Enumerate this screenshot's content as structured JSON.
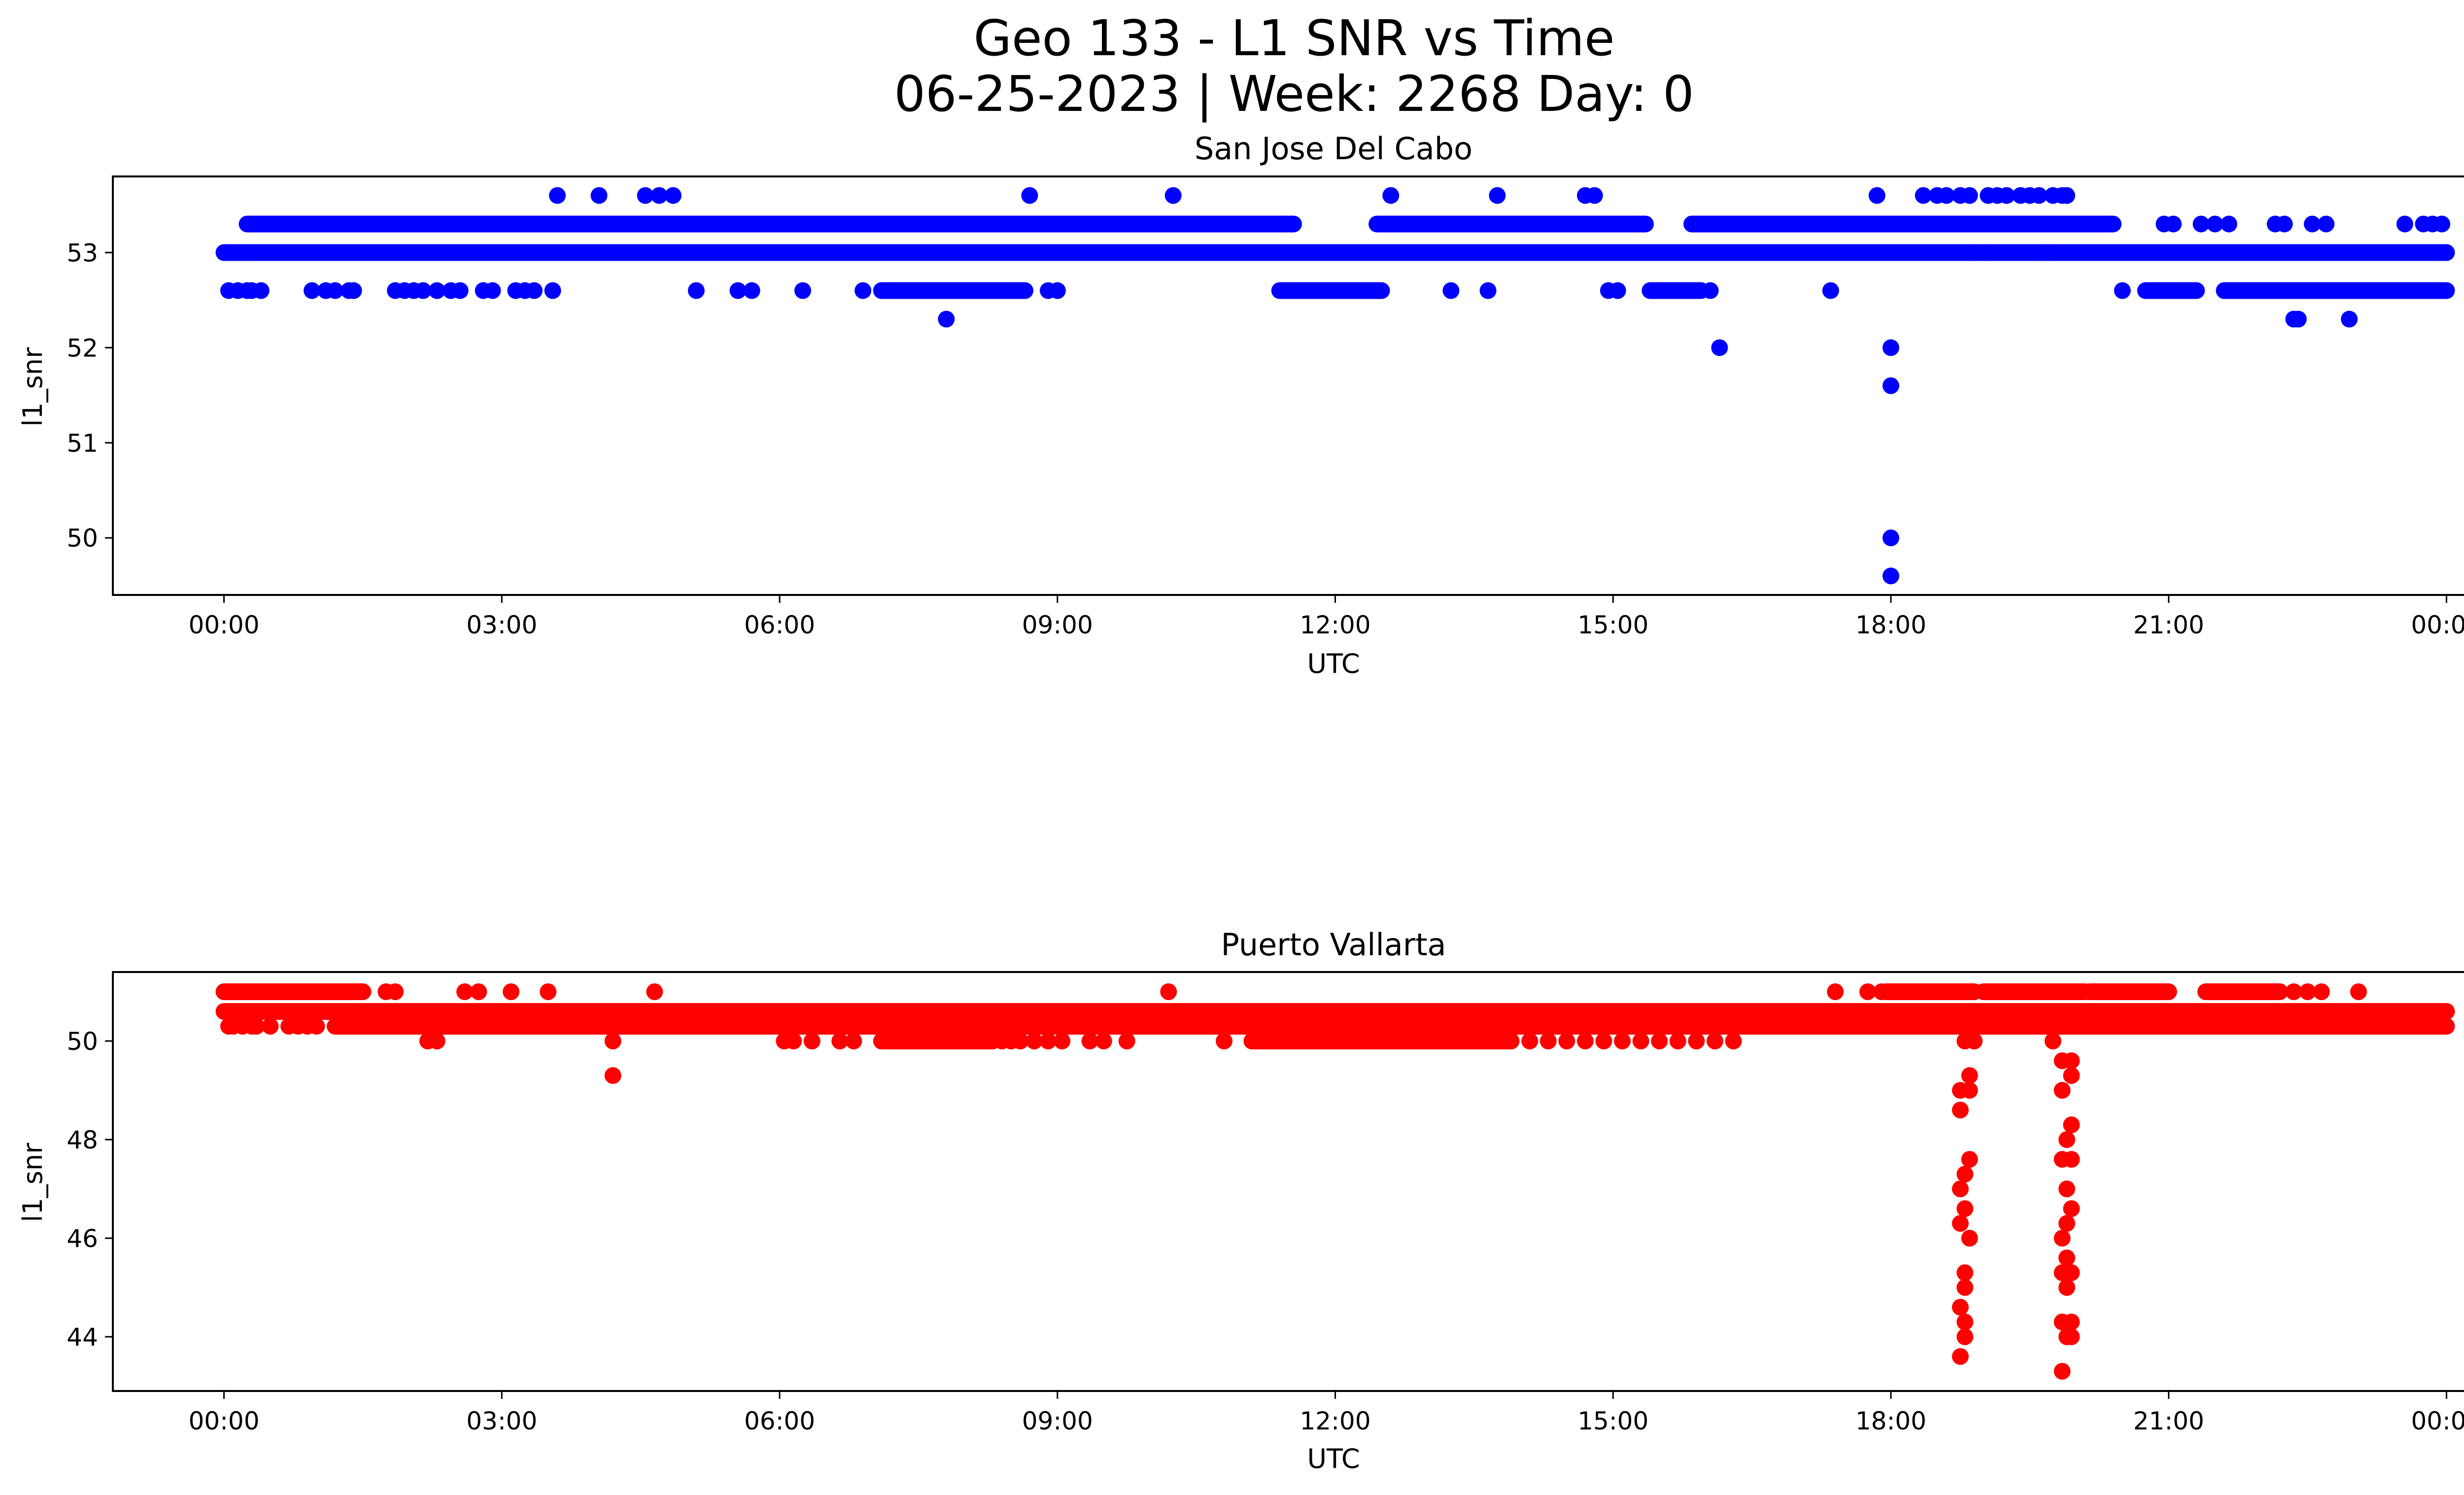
{
  "figure": {
    "title_line1": "Geo 133 - L1 SNR vs Time",
    "title_line2": "06-25-2023 | Week: 2268 Day: 0"
  },
  "chart_data": [
    {
      "type": "scatter",
      "title": "San Jose Del Cabo",
      "xlabel": "UTC",
      "ylabel": "l1_snr",
      "color": "#0000ff",
      "xlim_hours": [
        -1.2,
        25.2
      ],
      "ylim": [
        49.4,
        53.8
      ],
      "x_ticks": [
        "00:00",
        "03:00",
        "06:00",
        "09:00",
        "12:00",
        "15:00",
        "18:00",
        "21:00",
        "00:00"
      ],
      "y_ticks": [
        50,
        51,
        52,
        53
      ],
      "bands_hours": [
        {
          "y": 53.0,
          "from": 0.0,
          "to": 24.0
        },
        {
          "y": 53.3,
          "from": 0.25,
          "to": 11.55
        },
        {
          "y": 53.3,
          "from": 12.45,
          "to": 15.35
        },
        {
          "y": 53.3,
          "from": 15.85,
          "to": 20.4
        },
        {
          "y": 52.6,
          "from": 7.1,
          "to": 8.65
        },
        {
          "y": 52.6,
          "from": 11.4,
          "to": 12.5
        },
        {
          "y": 52.6,
          "from": 15.4,
          "to": 15.95
        },
        {
          "y": 52.6,
          "from": 20.75,
          "to": 21.3
        },
        {
          "y": 52.6,
          "from": 21.6,
          "to": 24.0
        }
      ],
      "points_hours": [
        [
          0.05,
          52.6
        ],
        [
          0.15,
          52.6
        ],
        [
          0.25,
          52.6
        ],
        [
          0.3,
          52.6
        ],
        [
          0.4,
          52.6
        ],
        [
          0.6,
          53.3
        ],
        [
          0.9,
          53.3
        ],
        [
          1.2,
          53.3
        ],
        [
          1.45,
          53.3
        ],
        [
          1.8,
          53.3
        ],
        [
          2.1,
          53.3
        ],
        [
          2.5,
          53.3
        ],
        [
          2.9,
          53.3
        ],
        [
          0.95,
          52.6
        ],
        [
          1.1,
          52.6
        ],
        [
          1.2,
          52.6
        ],
        [
          1.35,
          52.6
        ],
        [
          1.4,
          52.6
        ],
        [
          1.85,
          52.6
        ],
        [
          1.95,
          52.6
        ],
        [
          2.05,
          52.6
        ],
        [
          2.15,
          52.6
        ],
        [
          2.3,
          52.6
        ],
        [
          2.45,
          52.6
        ],
        [
          2.55,
          52.6
        ],
        [
          2.8,
          52.6
        ],
        [
          2.9,
          52.6
        ],
        [
          3.15,
          52.6
        ],
        [
          3.25,
          52.6
        ],
        [
          3.35,
          52.6
        ],
        [
          3.55,
          52.6
        ],
        [
          3.0,
          53.3
        ],
        [
          3.6,
          53.6
        ],
        [
          4.05,
          53.6
        ],
        [
          4.55,
          53.6
        ],
        [
          4.7,
          53.6
        ],
        [
          4.85,
          53.6
        ],
        [
          5.1,
          52.6
        ],
        [
          5.55,
          52.6
        ],
        [
          5.7,
          52.6
        ],
        [
          6.25,
          52.6
        ],
        [
          6.9,
          52.6
        ],
        [
          7.8,
          52.3
        ],
        [
          8.7,
          53.6
        ],
        [
          8.9,
          52.6
        ],
        [
          9.0,
          52.6
        ],
        [
          10.25,
          53.6
        ],
        [
          12.6,
          53.6
        ],
        [
          13.25,
          52.6
        ],
        [
          13.65,
          52.6
        ],
        [
          13.75,
          53.6
        ],
        [
          14.7,
          53.6
        ],
        [
          14.8,
          53.6
        ],
        [
          14.95,
          52.6
        ],
        [
          15.05,
          52.6
        ],
        [
          16.05,
          52.6
        ],
        [
          16.15,
          52.0
        ],
        [
          17.35,
          52.6
        ],
        [
          17.85,
          53.6
        ],
        [
          18.0,
          52.0
        ],
        [
          18.0,
          51.6
        ],
        [
          18.0,
          50.0
        ],
        [
          18.0,
          49.6
        ],
        [
          18.35,
          53.6
        ],
        [
          18.5,
          53.6
        ],
        [
          18.6,
          53.6
        ],
        [
          18.75,
          53.6
        ],
        [
          18.85,
          53.6
        ],
        [
          19.05,
          53.6
        ],
        [
          19.15,
          53.6
        ],
        [
          19.25,
          53.6
        ],
        [
          19.4,
          53.6
        ],
        [
          19.5,
          53.6
        ],
        [
          19.6,
          53.6
        ],
        [
          19.75,
          53.6
        ],
        [
          19.85,
          53.6
        ],
        [
          19.9,
          53.6
        ],
        [
          18.9,
          53.0
        ],
        [
          19.05,
          53.0
        ],
        [
          19.7,
          53.0
        ],
        [
          20.95,
          53.3
        ],
        [
          21.05,
          53.3
        ],
        [
          21.35,
          53.3
        ],
        [
          21.5,
          53.3
        ],
        [
          21.65,
          53.3
        ],
        [
          22.15,
          53.3
        ],
        [
          22.25,
          53.3
        ],
        [
          22.55,
          53.3
        ],
        [
          22.7,
          53.3
        ],
        [
          23.55,
          53.3
        ],
        [
          23.75,
          53.3
        ],
        [
          23.85,
          53.3
        ],
        [
          23.95,
          53.3
        ],
        [
          20.5,
          52.6
        ],
        [
          22.35,
          52.3
        ],
        [
          22.4,
          52.3
        ],
        [
          22.95,
          52.3
        ]
      ]
    },
    {
      "type": "scatter",
      "title": "Puerto Vallarta",
      "xlabel": "UTC",
      "ylabel": "l1_snr",
      "color": "#ff0000",
      "xlim_hours": [
        -1.2,
        25.2
      ],
      "ylim": [
        42.9,
        51.4
      ],
      "x_ticks": [
        "00:00",
        "03:00",
        "06:00",
        "09:00",
        "12:00",
        "15:00",
        "18:00",
        "21:00",
        "00:00"
      ],
      "y_ticks": [
        44,
        46,
        48,
        50
      ],
      "bands_hours": [
        {
          "y": 50.6,
          "from": 0.0,
          "to": 24.0
        },
        {
          "y": 50.3,
          "from": 1.2,
          "to": 24.0
        },
        {
          "y": 51.0,
          "from": 0.0,
          "to": 1.5
        },
        {
          "y": 50.0,
          "from": 11.1,
          "to": 13.9
        },
        {
          "y": 50.0,
          "from": 7.1,
          "to": 8.3
        },
        {
          "y": 51.0,
          "from": 17.95,
          "to": 18.9
        },
        {
          "y": 51.0,
          "from": 19.0,
          "to": 20.1
        },
        {
          "y": 51.0,
          "from": 20.15,
          "to": 21.0
        },
        {
          "y": 51.0,
          "from": 21.4,
          "to": 22.2
        }
      ],
      "points_hours": [
        [
          0.05,
          50.3
        ],
        [
          0.1,
          50.3
        ],
        [
          0.2,
          50.3
        ],
        [
          0.3,
          50.3
        ],
        [
          0.35,
          50.3
        ],
        [
          0.5,
          50.3
        ],
        [
          0.7,
          50.3
        ],
        [
          0.8,
          50.3
        ],
        [
          0.9,
          50.3
        ],
        [
          1.0,
          50.3
        ],
        [
          1.25,
          50.3
        ],
        [
          1.75,
          51.0
        ],
        [
          1.85,
          51.0
        ],
        [
          2.2,
          50.0
        ],
        [
          2.3,
          50.0
        ],
        [
          2.6,
          51.0
        ],
        [
          2.75,
          51.0
        ],
        [
          3.1,
          51.0
        ],
        [
          3.5,
          51.0
        ],
        [
          4.2,
          50.0
        ],
        [
          4.2,
          49.3
        ],
        [
          4.65,
          51.0
        ],
        [
          6.05,
          50.0
        ],
        [
          6.15,
          50.0
        ],
        [
          6.35,
          50.0
        ],
        [
          6.65,
          50.0
        ],
        [
          6.8,
          50.0
        ],
        [
          8.4,
          50.0
        ],
        [
          8.5,
          50.0
        ],
        [
          8.6,
          50.0
        ],
        [
          8.75,
          50.0
        ],
        [
          8.9,
          50.0
        ],
        [
          9.05,
          50.0
        ],
        [
          9.35,
          50.0
        ],
        [
          9.5,
          50.0
        ],
        [
          9.75,
          50.0
        ],
        [
          10.2,
          51.0
        ],
        [
          10.8,
          50.0
        ],
        [
          14.1,
          50.0
        ],
        [
          14.3,
          50.0
        ],
        [
          14.5,
          50.0
        ],
        [
          14.7,
          50.0
        ],
        [
          14.9,
          50.0
        ],
        [
          15.1,
          50.0
        ],
        [
          15.3,
          50.0
        ],
        [
          15.5,
          50.0
        ],
        [
          15.7,
          50.0
        ],
        [
          15.9,
          50.0
        ],
        [
          16.1,
          50.0
        ],
        [
          16.3,
          50.0
        ],
        [
          17.4,
          51.0
        ],
        [
          17.75,
          51.0
        ],
        [
          17.9,
          51.0
        ],
        [
          18.7,
          50.3
        ],
        [
          18.8,
          50.0
        ],
        [
          18.9,
          50.0
        ],
        [
          19.25,
          50.3
        ],
        [
          19.7,
          50.3
        ],
        [
          19.75,
          50.0
        ],
        [
          18.75,
          49.0
        ],
        [
          18.85,
          49.0
        ],
        [
          18.85,
          49.3
        ],
        [
          18.75,
          48.6
        ],
        [
          18.85,
          47.6
        ],
        [
          18.8,
          47.3
        ],
        [
          18.75,
          47.0
        ],
        [
          18.8,
          46.6
        ],
        [
          18.75,
          46.3
        ],
        [
          18.85,
          46.0
        ],
        [
          18.8,
          45.3
        ],
        [
          18.8,
          45.0
        ],
        [
          18.75,
          44.6
        ],
        [
          18.8,
          44.3
        ],
        [
          18.8,
          44.0
        ],
        [
          18.75,
          43.6
        ],
        [
          19.85,
          49.6
        ],
        [
          19.95,
          49.6
        ],
        [
          19.95,
          49.3
        ],
        [
          19.85,
          49.0
        ],
        [
          19.95,
          48.3
        ],
        [
          19.9,
          48.0
        ],
        [
          19.85,
          47.6
        ],
        [
          19.95,
          47.6
        ],
        [
          19.9,
          47.0
        ],
        [
          19.95,
          46.6
        ],
        [
          19.9,
          46.3
        ],
        [
          19.85,
          46.0
        ],
        [
          19.9,
          45.6
        ],
        [
          19.85,
          45.3
        ],
        [
          19.95,
          45.3
        ],
        [
          19.9,
          45.0
        ],
        [
          19.85,
          44.3
        ],
        [
          19.95,
          44.3
        ],
        [
          19.9,
          44.0
        ],
        [
          19.95,
          44.0
        ],
        [
          19.85,
          43.3
        ],
        [
          21.55,
          50.3
        ],
        [
          21.7,
          50.3
        ],
        [
          22.35,
          51.0
        ],
        [
          22.5,
          51.0
        ],
        [
          22.65,
          51.0
        ],
        [
          23.05,
          51.0
        ]
      ]
    }
  ]
}
